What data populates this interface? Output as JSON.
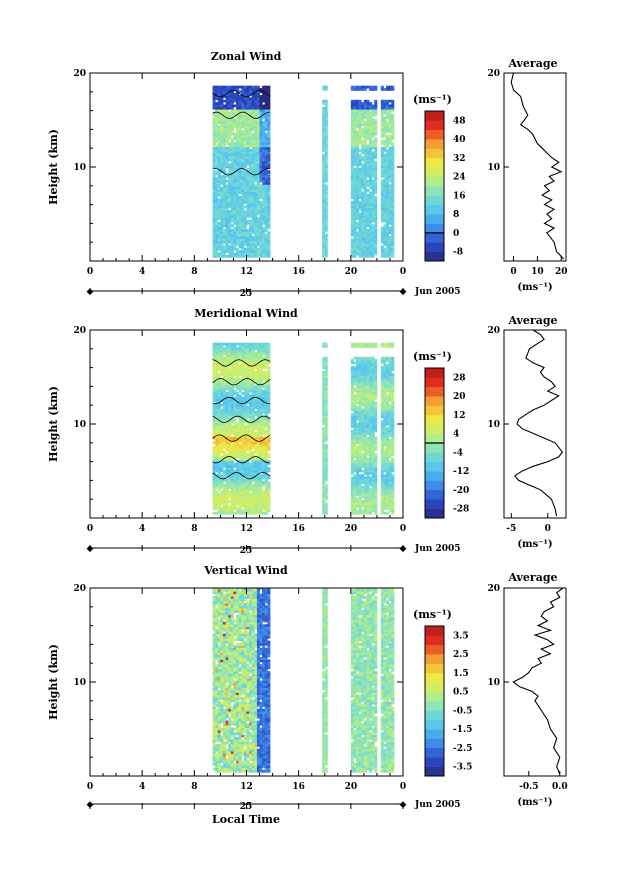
{
  "figure": {
    "xlabel": "Local Time",
    "date_label": "Jun 2005",
    "day_label": "25",
    "colors": {
      "ramp": [
        "#2a2a7a",
        "#2b48c8",
        "#3f8ee8",
        "#55c6f0",
        "#7fe0c8",
        "#bff07a",
        "#f2e840",
        "#f5a030",
        "#e83020",
        "#b01818"
      ]
    }
  },
  "chart_data": [
    {
      "type": "heatmap",
      "title": "Zonal Wind",
      "xlabel": "",
      "ylabel": "Height (km)",
      "units": "(ms⁻¹)",
      "x_ticks": [
        "0",
        "4",
        "8",
        "12",
        "16",
        "20",
        "0"
      ],
      "y_ticks": [
        "10",
        "20"
      ],
      "xlim": [
        0,
        24
      ],
      "ylim": [
        0,
        20
      ],
      "colorbar": {
        "labels": [
          "-8",
          "0",
          "8",
          "16",
          "24",
          "32",
          "40",
          "48"
        ],
        "range": [
          -12,
          52
        ],
        "contour_at": 0
      },
      "data_blocks": [
        {
          "x": [
            9.4,
            13.8
          ],
          "profile": "zonal_main"
        },
        {
          "x": [
            17.8,
            18.2
          ],
          "profile": "zonal_thin"
        },
        {
          "x": [
            20.0,
            22.0
          ],
          "profile": "zonal_block"
        },
        {
          "x": [
            22.3,
            23.2
          ],
          "profile": "zonal_block"
        }
      ],
      "average": {
        "title": "Average",
        "xlabel": "(ms⁻¹)",
        "x_ticks": [
          "0",
          "10",
          "20"
        ],
        "xlim": [
          -4,
          22
        ],
        "y_ticks": [
          "10",
          "20"
        ],
        "ylim": [
          0,
          20
        ],
        "profile": [
          [
            20,
            0
          ],
          [
            19,
            -1
          ],
          [
            18.2,
            0
          ],
          [
            17.5,
            3
          ],
          [
            16.5,
            4
          ],
          [
            15.5,
            6
          ],
          [
            14.5,
            3
          ],
          [
            14,
            6
          ],
          [
            13.5,
            8
          ],
          [
            13,
            9
          ],
          [
            12.5,
            10
          ],
          [
            12,
            12
          ],
          [
            11.5,
            14
          ],
          [
            11,
            16
          ],
          [
            10.5,
            19
          ],
          [
            10,
            16
          ],
          [
            9.5,
            20
          ],
          [
            9,
            15
          ],
          [
            8.5,
            17
          ],
          [
            8,
            13
          ],
          [
            7.5,
            15
          ],
          [
            7,
            12
          ],
          [
            6.5,
            16
          ],
          [
            6,
            13
          ],
          [
            5.5,
            17
          ],
          [
            5,
            14
          ],
          [
            4.5,
            16
          ],
          [
            4,
            13
          ],
          [
            3.5,
            17
          ],
          [
            3,
            14
          ],
          [
            2,
            17
          ],
          [
            1,
            18
          ],
          [
            0.5,
            20
          ],
          [
            0.2,
            21
          ]
        ]
      }
    },
    {
      "type": "heatmap",
      "title": "Meridional Wind",
      "xlabel": "",
      "ylabel": "Height (km)",
      "units": "(ms⁻¹)",
      "x_ticks": [
        "0",
        "4",
        "8",
        "12",
        "16",
        "20",
        "0"
      ],
      "y_ticks": [
        "10",
        "20"
      ],
      "xlim": [
        0,
        24
      ],
      "ylim": [
        0,
        20
      ],
      "colorbar": {
        "labels": [
          "-28",
          "-20",
          "-12",
          "-4",
          "4",
          "12",
          "20",
          "28"
        ],
        "range": [
          -32,
          32
        ],
        "contour_at": 0
      },
      "data_blocks": [
        {
          "x": [
            9.4,
            13.8
          ],
          "profile": "merid_main"
        },
        {
          "x": [
            17.8,
            18.2
          ],
          "profile": "merid_thin"
        },
        {
          "x": [
            20.0,
            22.0
          ],
          "profile": "merid_block"
        },
        {
          "x": [
            22.3,
            23.2
          ],
          "profile": "merid_block"
        }
      ],
      "average": {
        "title": "Average",
        "xlabel": "(ms⁻¹)",
        "x_ticks": [
          "-5",
          "0"
        ],
        "xlim": [
          -6,
          2.5
        ],
        "y_ticks": [
          "10",
          "20"
        ],
        "ylim": [
          0,
          20
        ],
        "profile": [
          [
            20,
            -2
          ],
          [
            19.5,
            -1
          ],
          [
            19,
            -0.5
          ],
          [
            18.5,
            -1.5
          ],
          [
            18,
            -2.5
          ],
          [
            17,
            -3
          ],
          [
            16.5,
            -2
          ],
          [
            16,
            -0.5
          ],
          [
            15.5,
            -1
          ],
          [
            15,
            -0.5
          ],
          [
            14.5,
            0.5
          ],
          [
            14,
            1
          ],
          [
            13.5,
            0
          ],
          [
            13,
            1.5
          ],
          [
            12.5,
            0.5
          ],
          [
            12,
            -0.5
          ],
          [
            11.5,
            -2
          ],
          [
            11,
            -3
          ],
          [
            10.5,
            -4
          ],
          [
            10,
            -4.2
          ],
          [
            9.5,
            -3.5
          ],
          [
            9,
            -2
          ],
          [
            8,
            1
          ],
          [
            7,
            2
          ],
          [
            6.5,
            1.5
          ],
          [
            6,
            0
          ],
          [
            5.5,
            -2
          ],
          [
            5,
            -3.5
          ],
          [
            4.5,
            -4.5
          ],
          [
            4,
            -4
          ],
          [
            3.5,
            -2.5
          ],
          [
            3,
            -1
          ],
          [
            2,
            0.5
          ],
          [
            1,
            1
          ],
          [
            0.2,
            1.2
          ]
        ]
      }
    },
    {
      "type": "heatmap",
      "title": "Vertical Wind",
      "xlabel": "Local Time",
      "ylabel": "Height (km)",
      "units": "(ms⁻¹)",
      "x_ticks": [
        "0",
        "4",
        "8",
        "12",
        "16",
        "20",
        "0"
      ],
      "y_ticks": [
        "10",
        "20"
      ],
      "xlim": [
        0,
        24
      ],
      "ylim": [
        0,
        20
      ],
      "colorbar": {
        "labels": [
          "-3.5",
          "-2.5",
          "-1.5",
          "-0.5",
          "0.5",
          "1.5",
          "2.5",
          "3.5"
        ],
        "range": [
          -4,
          4
        ],
        "contour_at": null
      },
      "data_blocks": [
        {
          "x": [
            9.4,
            12.8
          ],
          "profile": "vert_main"
        },
        {
          "x": [
            12.8,
            13.8
          ],
          "profile": "vert_dark"
        },
        {
          "x": [
            17.8,
            18.2
          ],
          "profile": "vert_thin"
        },
        {
          "x": [
            20.0,
            22.0
          ],
          "profile": "vert_block"
        },
        {
          "x": [
            22.3,
            23.2
          ],
          "profile": "vert_block"
        }
      ],
      "average": {
        "title": "Average",
        "xlabel": "(ms⁻¹)",
        "x_ticks": [
          "-0.5",
          "0.0"
        ],
        "xlim": [
          -0.9,
          0.1
        ],
        "y_ticks": [
          "10",
          "20"
        ],
        "ylim": [
          0,
          20
        ],
        "profile": [
          [
            20,
            0.05
          ],
          [
            19.5,
            -0.05
          ],
          [
            19,
            0
          ],
          [
            18.5,
            -0.15
          ],
          [
            18,
            -0.1
          ],
          [
            17.5,
            -0.25
          ],
          [
            17,
            -0.3
          ],
          [
            16.5,
            -0.2
          ],
          [
            16,
            -0.35
          ],
          [
            15.5,
            -0.15
          ],
          [
            15,
            -0.4
          ],
          [
            14.5,
            -0.2
          ],
          [
            14,
            -0.1
          ],
          [
            13.5,
            -0.3
          ],
          [
            13,
            -0.15
          ],
          [
            12.5,
            -0.35
          ],
          [
            12,
            -0.3
          ],
          [
            11.5,
            -0.45
          ],
          [
            11,
            -0.5
          ],
          [
            10.5,
            -0.6
          ],
          [
            10,
            -0.75
          ],
          [
            9.5,
            -0.65
          ],
          [
            9,
            -0.45
          ],
          [
            8.5,
            -0.35
          ],
          [
            8,
            -0.4
          ],
          [
            7,
            -0.3
          ],
          [
            6,
            -0.2
          ],
          [
            5,
            -0.15
          ],
          [
            4,
            -0.05
          ],
          [
            3,
            -0.1
          ],
          [
            2,
            0
          ],
          [
            1,
            -0.05
          ],
          [
            0.2,
            0
          ]
        ]
      }
    }
  ]
}
